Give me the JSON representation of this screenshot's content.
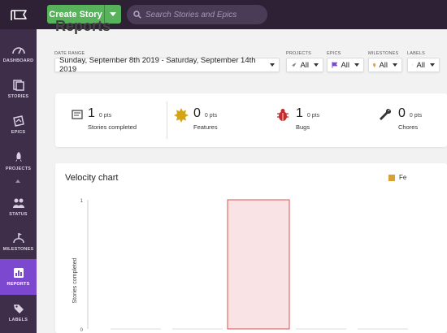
{
  "topbar": {
    "create_label": "Create Story",
    "search_placeholder": "Search Stories and Epics"
  },
  "sidebar": {
    "items": [
      {
        "label": "Dashboard",
        "icon": "dashboard-icon"
      },
      {
        "label": "Stories",
        "icon": "stories-icon"
      },
      {
        "label": "Epics",
        "icon": "epics-icon"
      },
      {
        "label": "Projects",
        "icon": "projects-icon"
      },
      {
        "label": "Status",
        "icon": "status-icon"
      },
      {
        "label": "Milestones",
        "icon": "milestones-icon"
      },
      {
        "label": "Reports",
        "icon": "reports-icon",
        "active": true
      },
      {
        "label": "Labels",
        "icon": "labels-icon"
      }
    ]
  },
  "page": {
    "title": "Reports"
  },
  "filters": {
    "date_range_label": "Date Range",
    "date_range_value": "Sunday, September 8th 2019 - Saturday, September 14th 2019",
    "projects_label": "Projects",
    "projects_value": "All",
    "epics_label": "Epics",
    "epics_value": "All",
    "milestones_label": "Milestones",
    "milestones_value": "All",
    "labels_label": "Labels",
    "labels_value": "All"
  },
  "stats": [
    {
      "count": "1",
      "pts": "0 pts",
      "label": "Stories completed"
    },
    {
      "count": "0",
      "pts": "0 pts",
      "label": "Features"
    },
    {
      "count": "1",
      "pts": "0 pts",
      "label": "Bugs"
    },
    {
      "count": "0",
      "pts": "0 pts",
      "label": "Chores"
    }
  ],
  "chart": {
    "title": "Velocity chart",
    "legend_text": "Fe"
  },
  "chart_data": {
    "type": "bar",
    "ylabel": "Stories completed",
    "ylim": [
      0,
      1
    ],
    "yticks": [
      "1",
      "0"
    ],
    "categories": [
      "",
      "",
      "",
      "",
      ""
    ],
    "series": [
      {
        "values": [
          0,
          0,
          1,
          0,
          0
        ],
        "color": "#f9e3e4",
        "stroke": "#d9534f"
      }
    ]
  },
  "colors": {
    "accent": "#7c48d0",
    "topbar": "#2e2136",
    "sidebar": "#3e2e4a",
    "create": "#58b15b"
  }
}
